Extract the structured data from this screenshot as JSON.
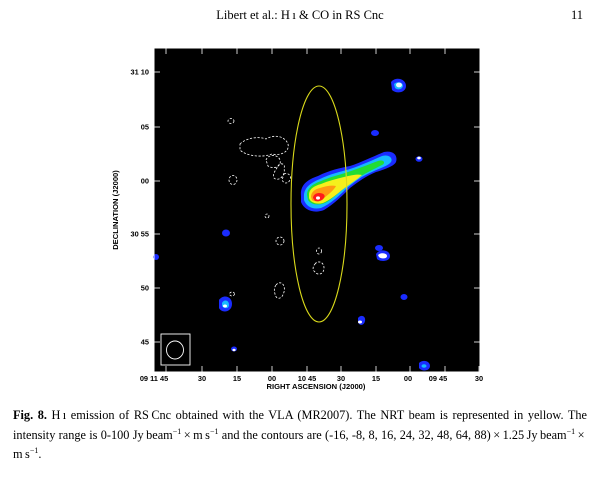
{
  "header": {
    "running_title": "Libert et al.: H ı & CO in RS Cnc",
    "page_number": "11"
  },
  "figure": {
    "xlabel": "RIGHT ASCENSION (J2000)",
    "ylabel": "DECLINATION (J2000)",
    "x_ticks": [
      "09 11 45",
      "30",
      "15",
      "00",
      "10 45",
      "30",
      "15",
      "00",
      "09 45",
      "30"
    ],
    "y_ticks": [
      "31 10",
      "05",
      "00",
      "30 55",
      "50",
      "45"
    ],
    "colors": {
      "background": "#000000",
      "frame": "#ffffff",
      "nrt_beam": "#d9d91a",
      "negative_contours": "#ffffff",
      "emission_low": "#1a2cff",
      "emission_mid": "#18b9ff",
      "emission_green": "#22dd33",
      "emission_yellow": "#f5ef1c",
      "emission_orange": "#ff9a12",
      "emission_red": "#ff1a1a"
    }
  },
  "caption": {
    "label": "Fig. 8.",
    "text_1": " H ı emission of RS Cnc obtained with the VLA (MR2007). The NRT beam is represented in yellow. The intensity range is 0-100 Jy beam",
    "sup_1": "−1",
    "text_2": " × m s",
    "sup_2": "−1",
    "text_3": " and the contours are (-16, -8, 8, 16, 24, 32, 48, 64, 88) × 1.25 Jy beam",
    "sup_3": "−1",
    "text_4": " × m s",
    "sup_4": "−1",
    "text_5": "."
  }
}
